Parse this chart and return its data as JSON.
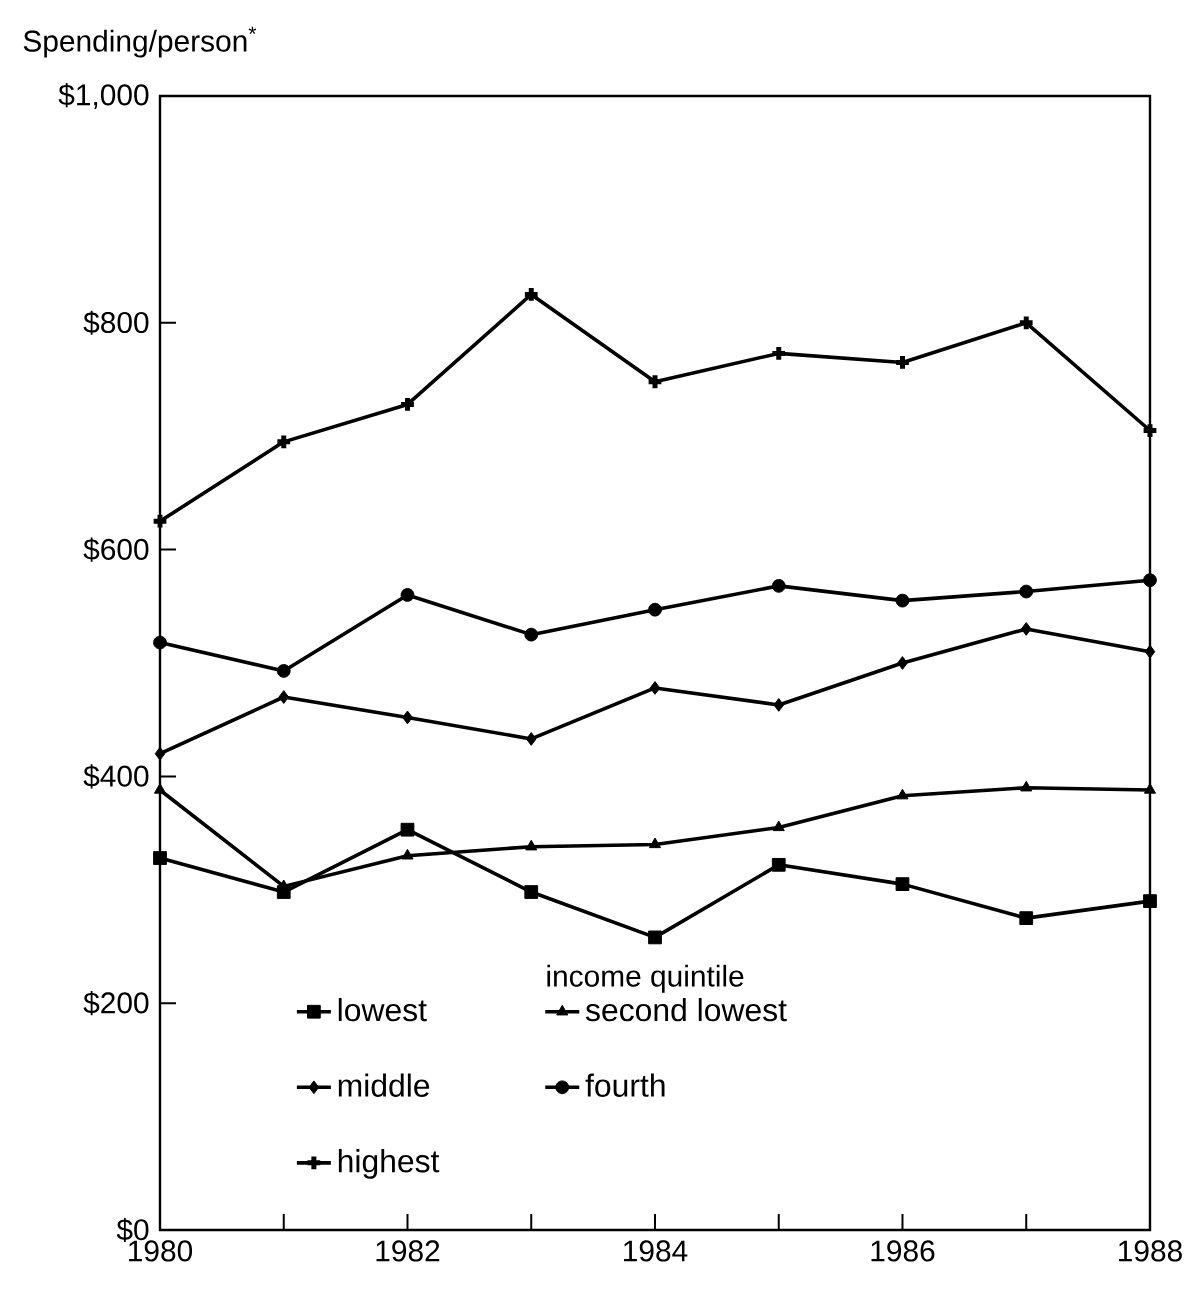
{
  "chart_data": {
    "type": "line",
    "ylabel": "Spending/person$^{*}$",
    "legend_title": "income quintile",
    "legend": "bottom left",
    "grid": false,
    "x": [
      1980,
      1981,
      1982,
      1983,
      1984,
      1985,
      1986,
      1987,
      1988
    ],
    "xlim": [
      1980,
      1988
    ],
    "xticks": [
      1980,
      {
        "value": 1981,
        "label": null
      },
      1982,
      {
        "value": 1983,
        "label": null
      },
      1984,
      {
        "value": 1985,
        "label": null
      },
      1986,
      {
        "value": 1987,
        "label": null
      },
      1988
    ],
    "ylim": [
      0,
      1000
    ],
    "yticks": [
      {
        "value": 0,
        "label": "$0"
      },
      {
        "value": 200,
        "label": "$200"
      },
      {
        "value": 400,
        "label": "$400"
      },
      {
        "value": 600,
        "label": "$600"
      },
      {
        "value": 800,
        "label": "$800"
      },
      {
        "value": 1000,
        "label": "$1,000"
      }
    ],
    "series": [
      {
        "name": "lowest",
        "color": "#000000",
        "marker": "square",
        "values": [
          328,
          298,
          353,
          298,
          258,
          322,
          305,
          275,
          290
        ]
      },
      {
        "name": "second lowest",
        "color": "#000000",
        "marker": "triangle",
        "values": [
          388,
          303,
          330,
          338,
          340,
          355,
          383,
          390,
          388
        ]
      },
      {
        "name": "middle",
        "color": "#000000",
        "marker": "diamond",
        "values": [
          420,
          470,
          452,
          433,
          478,
          463,
          500,
          530,
          510
        ]
      },
      {
        "name": "fourth",
        "color": "#000000",
        "marker": "circle",
        "values": [
          518,
          493,
          560,
          525,
          547,
          568,
          555,
          563,
          573
        ]
      },
      {
        "name": "highest",
        "color": "#000000",
        "marker": "cross",
        "values": [
          625,
          695,
          728,
          825,
          748,
          773,
          765,
          800,
          705
        ]
      }
    ]
  }
}
